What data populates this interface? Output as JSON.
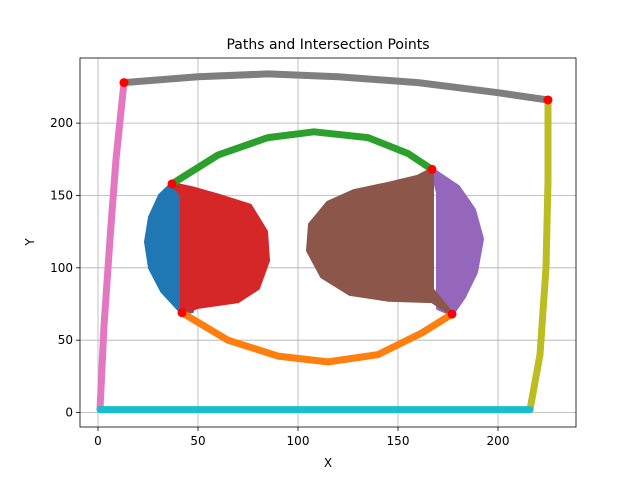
{
  "chart_data": {
    "type": "scatter",
    "title": "Paths and Intersection Points",
    "xlabel": "X",
    "ylabel": "Y",
    "xlim": [
      -9,
      239
    ],
    "ylim": [
      -10,
      245
    ],
    "xticks": [
      0,
      50,
      100,
      150,
      200
    ],
    "yticks": [
      0,
      50,
      100,
      150,
      200
    ],
    "grid": true,
    "colors": {
      "blue": "#1f77b4",
      "orange": "#ff7f0e",
      "green": "#2ca02c",
      "red": "#d62728",
      "purple": "#9467bd",
      "brown": "#8c564b",
      "pink": "#e377c2",
      "gray": "#7f7f7f",
      "olive": "#bcbd22",
      "cyan": "#17becf",
      "marker": "#ff0000"
    },
    "series": [
      {
        "color": "gray",
        "points": [
          [
            13,
            228
          ],
          [
            50,
            232
          ],
          [
            85,
            234
          ],
          [
            120,
            232
          ],
          [
            160,
            228
          ],
          [
            200,
            221
          ],
          [
            225,
            216
          ]
        ]
      },
      {
        "color": "pink",
        "points": [
          [
            1,
            2
          ],
          [
            3,
            60
          ],
          [
            6,
            120
          ],
          [
            9,
            175
          ],
          [
            13,
            228
          ]
        ]
      },
      {
        "color": "olive",
        "points": [
          [
            216,
            2
          ],
          [
            221,
            40
          ],
          [
            224,
            100
          ],
          [
            225,
            160
          ],
          [
            225,
            216
          ]
        ]
      },
      {
        "color": "cyan",
        "points": [
          [
            1,
            2
          ],
          [
            216,
            2
          ]
        ]
      },
      {
        "color": "green",
        "points": [
          [
            37,
            158
          ],
          [
            60,
            178
          ],
          [
            85,
            190
          ],
          [
            108,
            194
          ],
          [
            135,
            190
          ],
          [
            155,
            179
          ],
          [
            167,
            168
          ]
        ]
      },
      {
        "color": "orange",
        "points": [
          [
            42,
            69
          ],
          [
            65,
            50
          ],
          [
            90,
            39
          ],
          [
            115,
            35
          ],
          [
            140,
            40
          ],
          [
            162,
            55
          ],
          [
            177,
            68
          ]
        ]
      }
    ],
    "regions": [
      {
        "color": "blue",
        "points": [
          [
            37,
            158
          ],
          [
            31,
            150
          ],
          [
            26,
            135
          ],
          [
            24,
            118
          ],
          [
            26,
            100
          ],
          [
            32,
            84
          ],
          [
            42,
            69
          ],
          [
            47,
            70
          ],
          [
            47,
            152
          ]
        ]
      },
      {
        "color": "red",
        "points": [
          [
            42,
            69
          ],
          [
            50,
            73
          ],
          [
            60,
            75
          ],
          [
            70,
            77
          ],
          [
            80,
            86
          ],
          [
            85,
            105
          ],
          [
            84,
            125
          ],
          [
            76,
            143
          ],
          [
            60,
            150
          ],
          [
            47,
            155
          ],
          [
            37,
            158
          ],
          [
            42,
            150
          ],
          [
            42,
            75
          ]
        ]
      },
      {
        "color": "purple",
        "points": [
          [
            167,
            168
          ],
          [
            180,
            156
          ],
          [
            188,
            140
          ],
          [
            192,
            120
          ],
          [
            189,
            97
          ],
          [
            183,
            80
          ],
          [
            177,
            68
          ],
          [
            170,
            72
          ],
          [
            170,
            152
          ]
        ]
      },
      {
        "color": "brown",
        "points": [
          [
            167,
            168
          ],
          [
            160,
            163
          ],
          [
            145,
            158
          ],
          [
            128,
            153
          ],
          [
            115,
            145
          ],
          [
            106,
            130
          ],
          [
            105,
            112
          ],
          [
            112,
            94
          ],
          [
            126,
            82
          ],
          [
            145,
            78
          ],
          [
            167,
            77
          ],
          [
            177,
            68
          ],
          [
            167,
            85
          ],
          [
            167,
            130
          ]
        ]
      }
    ],
    "intersections": [
      [
        13,
        228
      ],
      [
        225,
        216
      ],
      [
        37,
        158
      ],
      [
        167,
        168
      ],
      [
        42,
        69
      ],
      [
        177,
        68
      ]
    ]
  }
}
